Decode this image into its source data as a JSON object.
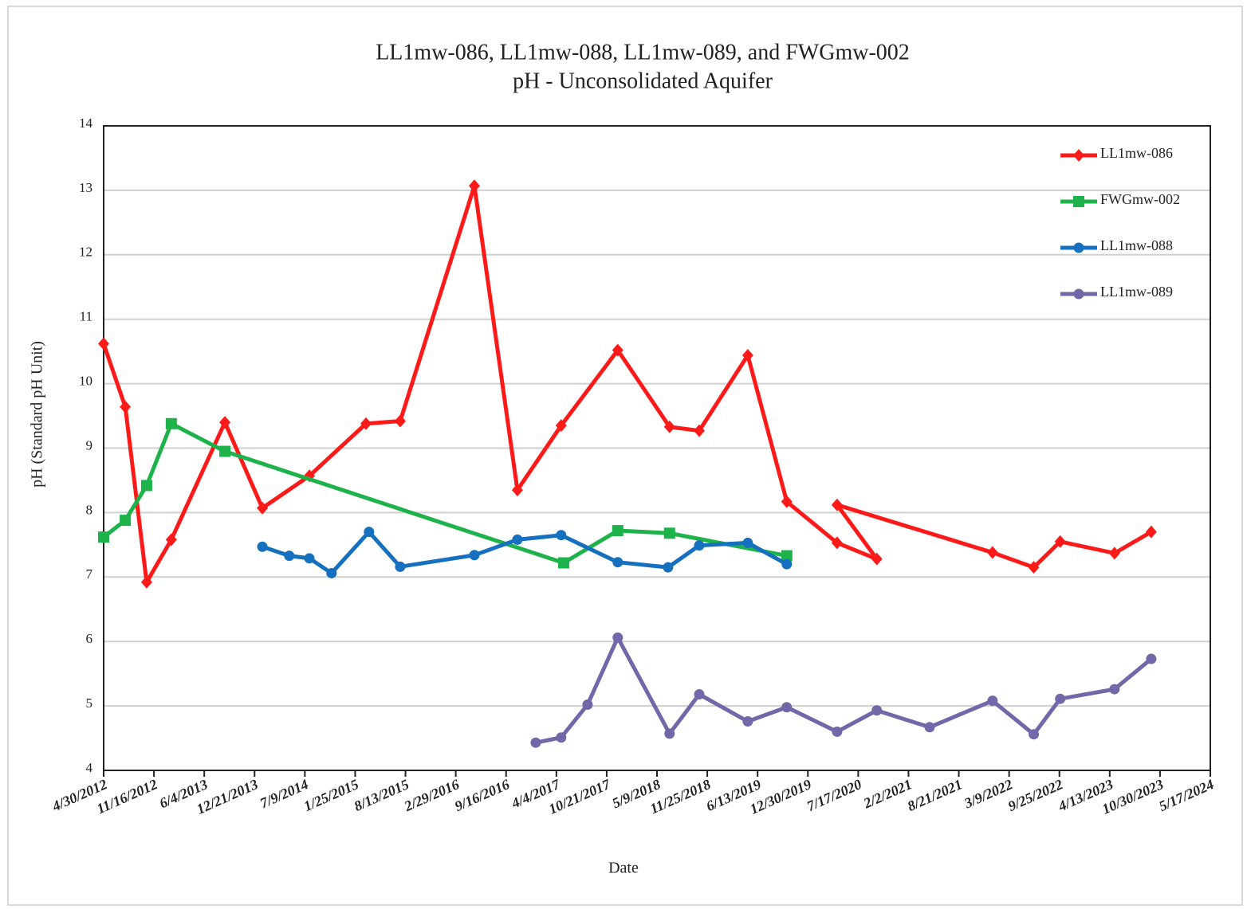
{
  "chart_data": {
    "type": "line",
    "title": "LL1mw-086, LL1mw-088, LL1mw-089, and FWGmw-002",
    "subtitle": "pH - Unconsolidated Aquifer",
    "x_label": "Date",
    "y_label": "pH (Standard pH Unit)",
    "xlim": [
      "4/30/2012",
      "5/17/2024"
    ],
    "xticks": [
      "4/30/2012",
      "11/16/2012",
      "6/4/2013",
      "12/21/2013",
      "7/9/2014",
      "1/25/2015",
      "8/13/2015",
      "2/29/2016",
      "9/16/2016",
      "4/4/2017",
      "10/21/2017",
      "5/9/2018",
      "11/25/2018",
      "6/13/2019",
      "12/30/2019",
      "7/17/2020",
      "2/2/2021",
      "8/21/2021",
      "3/9/2022",
      "9/25/2022",
      "4/13/2023",
      "10/30/2023",
      "5/17/2024"
    ],
    "ylim": [
      4,
      14
    ],
    "yticks": [
      4,
      5,
      6,
      7,
      8,
      9,
      10,
      11,
      12,
      13,
      14
    ],
    "grid": true,
    "legend": "upper right",
    "series": [
      {
        "name": "LL1mw-086",
        "color": "#ff1a1a",
        "marker": "diamond",
        "x": [
          "4/30/2012",
          "7/25/2012",
          "10/18/2012",
          "1/24/2013",
          "8/25/2013",
          "1/21/2014",
          "7/27/2014",
          "3/9/2015",
          "7/23/2015",
          "5/13/2016",
          "10/31/2016",
          "4/23/2017",
          "12/4/2017",
          "6/28/2018",
          "10/24/2018",
          "5/5/2019",
          "10/7/2019",
          "4/24/2020",
          "9/29/2020",
          "4/24/2020",
          "1/2/2022",
          "6/15/2022",
          "9/28/2022",
          "5/2/2023",
          "9/25/2023"
        ],
        "values": [
          10.62,
          9.64,
          6.92,
          7.58,
          9.4,
          8.07,
          8.57,
          9.38,
          9.42,
          13.07,
          8.35,
          9.35,
          10.52,
          9.33,
          9.27,
          10.44,
          8.17,
          7.53,
          7.28,
          8.12,
          7.38,
          7.15,
          7.55,
          7.37,
          7.7
        ]
      },
      {
        "name": "FWGmw-002",
        "color": "#1db34a",
        "marker": "square",
        "x": [
          "4/30/2012",
          "7/25/2012",
          "10/18/2012",
          "1/24/2013",
          "8/25/2013",
          "5/3/2017",
          "12/4/2017",
          "6/28/2018",
          "10/7/2019"
        ],
        "values": [
          7.62,
          7.88,
          8.42,
          9.38,
          8.95,
          7.22,
          7.72,
          7.68,
          7.33
        ]
      },
      {
        "name": "LL1mw-088",
        "color": "#1670c0",
        "marker": "circle",
        "x": [
          "1/21/2014",
          "5/8/2014",
          "7/27/2014",
          "10/23/2014",
          "3/21/2015",
          "7/23/2015",
          "5/13/2016",
          "10/31/2016",
          "4/23/2017",
          "12/4/2017",
          "6/22/2018",
          "10/24/2018",
          "5/5/2019",
          "10/7/2019"
        ],
        "values": [
          7.47,
          7.33,
          7.29,
          7.06,
          7.7,
          7.16,
          7.34,
          7.58,
          7.65,
          7.23,
          7.15,
          7.49,
          7.53,
          7.2
        ]
      },
      {
        "name": "LL1mw-089",
        "color": "#7068a8",
        "marker": "circle",
        "x": [
          "1/12/2017",
          "4/23/2017",
          "8/6/2017",
          "12/4/2017",
          "6/28/2018",
          "10/24/2018",
          "5/5/2019",
          "10/7/2019",
          "4/24/2020",
          "9/29/2020",
          "4/27/2021",
          "1/2/2022",
          "6/15/2022",
          "9/28/2022",
          "5/2/2023",
          "9/25/2023"
        ],
        "values": [
          4.43,
          4.51,
          5.02,
          6.06,
          4.57,
          5.18,
          4.76,
          4.98,
          4.6,
          4.93,
          4.67,
          5.08,
          4.56,
          5.11,
          5.26,
          5.73
        ]
      }
    ]
  }
}
